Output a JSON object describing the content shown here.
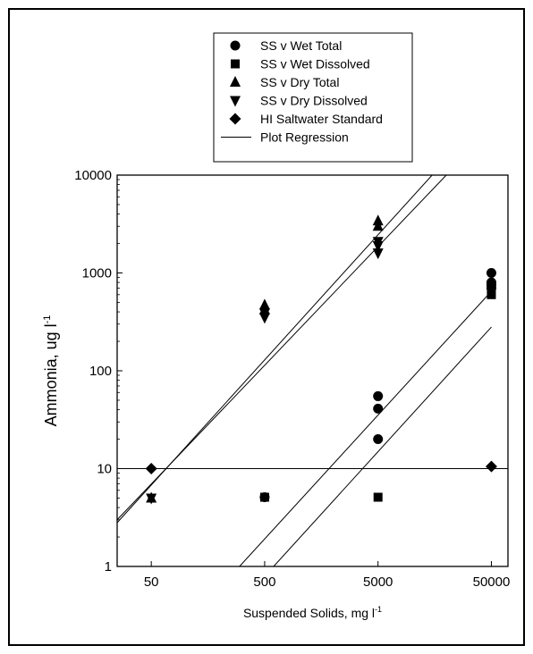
{
  "chart_data": {
    "type": "scatter",
    "title": "",
    "xlabel": "Suspended Solids, mg l",
    "xlabel_sup": "-1",
    "ylabel": "Ammonia, ug l",
    "ylabel_sup": "-1",
    "x_scale": "log",
    "y_scale": "log",
    "xlim": [
      25,
      70000
    ],
    "ylim": [
      1,
      10000
    ],
    "x_ticks": [
      50,
      500,
      5000,
      50000
    ],
    "x_tick_labels": [
      "50",
      "500",
      "5000",
      "50000"
    ],
    "y_ticks": [
      1,
      10,
      100,
      1000,
      10000
    ],
    "y_tick_labels": [
      "1",
      "10",
      "100",
      "1000",
      "10000"
    ],
    "grid": false,
    "legend_position": "top-center",
    "series": [
      {
        "name": "SS v Wet Total",
        "marker": "circle",
        "points": [
          [
            500,
            5.1
          ],
          [
            5000,
            55
          ],
          [
            5000,
            41
          ],
          [
            5000,
            20
          ],
          [
            50000,
            1000
          ],
          [
            50000,
            800
          ],
          [
            50000,
            750
          ],
          [
            50000,
            700
          ]
        ]
      },
      {
        "name": "SS v Wet Dissolved",
        "marker": "square",
        "points": [
          [
            500,
            5.1
          ],
          [
            5000,
            5.1
          ],
          [
            50000,
            650
          ],
          [
            50000,
            600
          ]
        ]
      },
      {
        "name": "SS v Dry Total",
        "marker": "triangle-up",
        "points": [
          [
            50,
            5
          ],
          [
            500,
            470
          ],
          [
            500,
            420
          ],
          [
            5000,
            3400
          ],
          [
            5000,
            3000
          ]
        ]
      },
      {
        "name": "SS v Dry Dissolved",
        "marker": "triangle-down",
        "points": [
          [
            50,
            5
          ],
          [
            500,
            350
          ],
          [
            500,
            390
          ],
          [
            5000,
            2100
          ],
          [
            5000,
            1900
          ],
          [
            5000,
            1600
          ]
        ]
      },
      {
        "name": "HI Saltwater Standard",
        "marker": "diamond",
        "points": [
          [
            50,
            10
          ],
          [
            50000,
            10.5
          ]
        ]
      }
    ],
    "regression_legend": "Plot Regression",
    "regression_lines": [
      {
        "x": [
          25,
          15000
        ],
        "y": [
          2.8,
          10000
        ]
      },
      {
        "x": [
          25,
          20000
        ],
        "y": [
          3.0,
          10000
        ]
      },
      {
        "x": [
          300,
          50000
        ],
        "y": [
          1,
          650
        ]
      },
      {
        "x": [
          600,
          50000
        ],
        "y": [
          1,
          280
        ]
      },
      {
        "x": [
          25,
          70000
        ],
        "y": [
          10,
          10
        ]
      }
    ]
  }
}
